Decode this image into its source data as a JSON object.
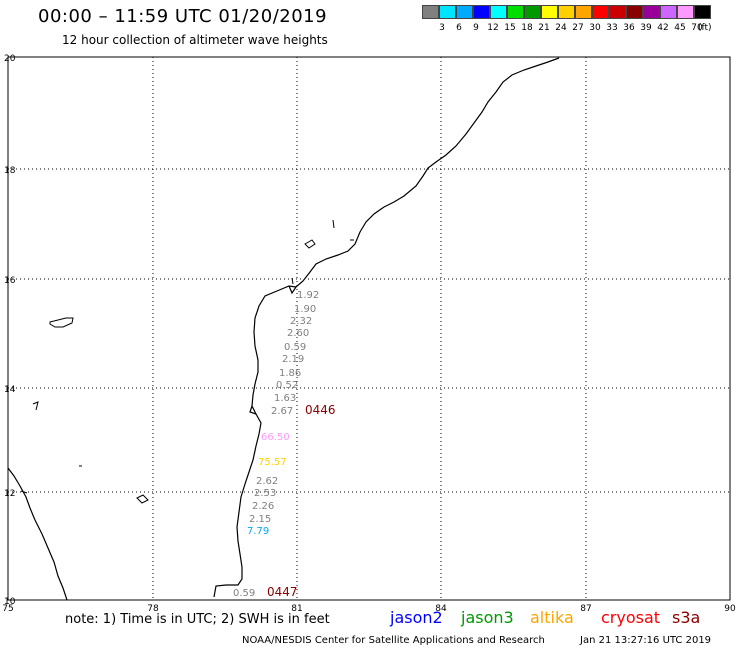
{
  "header": {
    "title": "00:00 – 11:59 UTC 01/20/2019",
    "subtitle": "12 hour collection of altimeter wave heights"
  },
  "legend": {
    "colors": [
      "#808080",
      "#00e5ff",
      "#00aaff",
      "#0000ff",
      "#00ffff",
      "#00dd00",
      "#009900",
      "#ffff00",
      "#ffd000",
      "#ffa500",
      "#ff0000",
      "#cc0000",
      "#880000",
      "#990099",
      "#cc66ff",
      "#ff99ff",
      "#000000"
    ],
    "labels": [
      "3",
      "6",
      "9",
      "12",
      "15",
      "18",
      "21",
      "24",
      "27",
      "30",
      "33",
      "36",
      "39",
      "42",
      "45",
      "70"
    ],
    "unit": "(ft)"
  },
  "map": {
    "lat_labels": [
      "20",
      "18",
      "16",
      "14",
      "12",
      "10"
    ],
    "lon_labels": [
      "75",
      "78",
      "81",
      "84",
      "87",
      "90"
    ],
    "wave_labels": [
      {
        "text": "1.92",
        "color": "#808080"
      },
      {
        "text": "1.90",
        "color": "#808080"
      },
      {
        "text": "2.32",
        "color": "#808080"
      },
      {
        "text": "2.60",
        "color": "#808080"
      },
      {
        "text": "0.59",
        "color": "#808080"
      },
      {
        "text": "2.19",
        "color": "#808080"
      },
      {
        "text": "1.86",
        "color": "#808080"
      },
      {
        "text": "0.52",
        "color": "#808080"
      },
      {
        "text": "1.63",
        "color": "#808080"
      },
      {
        "text": "2.67",
        "color": "#808080"
      },
      {
        "text": "66.50",
        "color": "#ff99ff"
      },
      {
        "text": "75.57",
        "color": "#ffd000"
      },
      {
        "text": "2.62",
        "color": "#808080"
      },
      {
        "text": "2.53",
        "color": "#808080"
      },
      {
        "text": "2.26",
        "color": "#808080"
      },
      {
        "text": "2.15",
        "color": "#808080"
      },
      {
        "text": "7.79",
        "color": "#00aaff"
      },
      {
        "text": "0.59",
        "color": "#808080"
      }
    ],
    "pass_labels": [
      {
        "text": "0446",
        "color": "#880000"
      },
      {
        "text": "0447",
        "color": "#880000"
      }
    ]
  },
  "footer": {
    "note": "note: 1) Time is in UTC; 2) SWH is in feet",
    "satellites": [
      {
        "name": "jason2",
        "color": "#0000ff"
      },
      {
        "name": "jason3",
        "color": "#009900"
      },
      {
        "name": "altika",
        "color": "#ffa500"
      },
      {
        "name": "cryosat",
        "color": "#ff0000"
      },
      {
        "name": "s3a",
        "color": "#880000"
      }
    ],
    "credit": "NOAA/NESDIS Center for Satellite Applications and Research",
    "timestamp": "Jan 21 13:27:16 UTC 2019"
  }
}
